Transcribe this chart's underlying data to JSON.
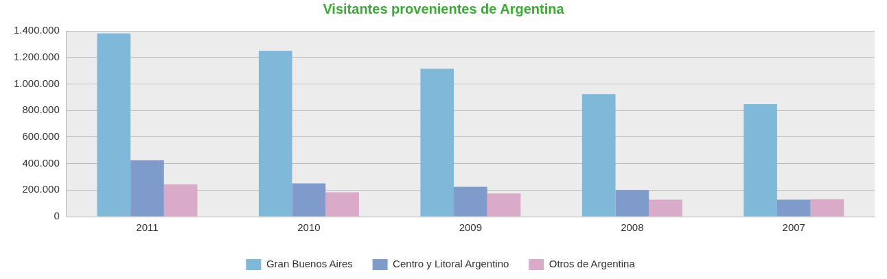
{
  "chart_data": {
    "type": "bar",
    "title": "Visitantes provenientes de Argentina",
    "categories": [
      "2011",
      "2010",
      "2009",
      "2008",
      "2007"
    ],
    "series": [
      {
        "name": "Gran Buenos Aires",
        "color": "#7fb8d8",
        "values": [
          1380000,
          1250000,
          1115000,
          923000,
          847000
        ]
      },
      {
        "name": "Centro y Litoral Argentino",
        "color": "#7f9bcb",
        "values": [
          425000,
          251000,
          225000,
          200000,
          128000
        ]
      },
      {
        "name": "Otros de Argentina",
        "color": "#d9abc8",
        "values": [
          243000,
          183000,
          175000,
          128000,
          132000
        ]
      }
    ],
    "ylim": [
      0,
      1400000
    ],
    "yticks": [
      {
        "value": 0,
        "label": "0"
      },
      {
        "value": 200000,
        "label": "200.000"
      },
      {
        "value": 400000,
        "label": "400.000"
      },
      {
        "value": 600000,
        "label": "600.000"
      },
      {
        "value": 800000,
        "label": "800.000"
      },
      {
        "value": 1000000,
        "label": "1.000.000"
      },
      {
        "value": 1200000,
        "label": "1.200.000"
      },
      {
        "value": 1400000,
        "label": "1.400.000"
      }
    ],
    "grid": "y",
    "legend": "bottom"
  }
}
